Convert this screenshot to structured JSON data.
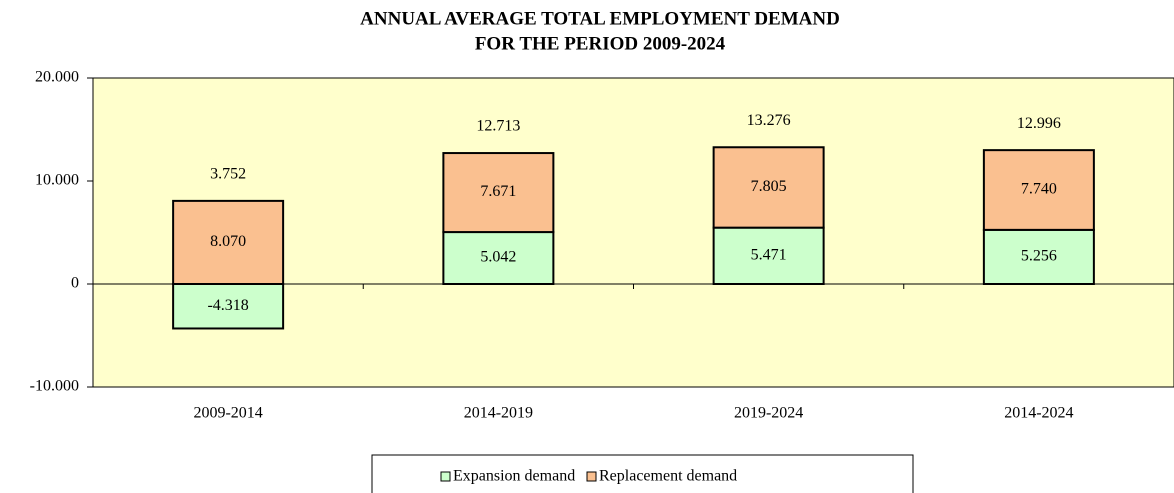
{
  "chart_data": {
    "type": "stacked_bar",
    "title": [
      "ANNUAL AVERAGE TOTAL EMPLOYMENT DEMAND",
      "FOR THE PERIOD 2009-2024"
    ],
    "categories": [
      "2009-2014",
      "2014-2019",
      "2019-2024",
      "2014-2024"
    ],
    "series": [
      {
        "name": "Expansion demand",
        "color": "#ccffcc",
        "values": [
          -4318,
          5042,
          5471,
          5256
        ],
        "value_labels": [
          "-4.318",
          "5.042",
          "5.471",
          "5.256"
        ]
      },
      {
        "name": "Replacement demand",
        "color": "#fac090",
        "values": [
          8070,
          7671,
          7805,
          7740
        ],
        "value_labels": [
          "8.070",
          "7.671",
          "7.805",
          "7.740"
        ]
      }
    ],
    "totals": {
      "values": [
        3752,
        12713,
        13276,
        12996
      ],
      "value_labels": [
        "3.752",
        "12.713",
        "13.276",
        "12.996"
      ]
    },
    "ylim": [
      -10000,
      20000
    ],
    "yticks": [
      {
        "value": -10000,
        "label": "-10.000"
      },
      0,
      {
        "value": 10000,
        "label": "10.000"
      },
      {
        "value": 20000,
        "label": "20.000"
      }
    ],
    "plot_background": "#ffffcc"
  }
}
